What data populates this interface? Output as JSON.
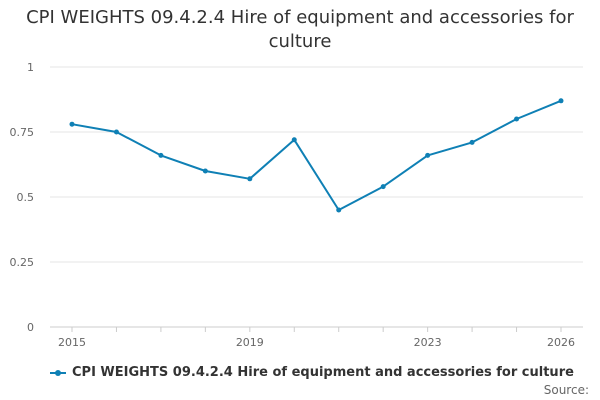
{
  "chart_data": {
    "type": "line",
    "title": "CPI WEIGHTS 09.4.2.4 Hire of equipment and accessories for culture",
    "x": [
      2015,
      2016,
      2017,
      2018,
      2019,
      2020,
      2021,
      2022,
      2023,
      2024,
      2025,
      2026
    ],
    "series": [
      {
        "name": "CPI WEIGHTS 09.4.2.4 Hire of equipment and accessories for culture",
        "values": [
          0.78,
          0.75,
          0.66,
          0.6,
          0.57,
          0.72,
          0.45,
          0.54,
          0.66,
          0.71,
          0.8,
          0.87
        ],
        "color": "#0f80b5"
      }
    ],
    "x_ticks": [
      2015,
      2019,
      2023,
      2026
    ],
    "y_ticks": [
      0,
      0.25,
      0.5,
      0.75,
      1
    ],
    "y_tick_labels": [
      "0",
      "0.25",
      "0.5",
      "0.75",
      "1"
    ],
    "ylim": [
      0,
      1
    ],
    "xlim": [
      2015,
      2026
    ],
    "grid": true,
    "legend": "bottom",
    "source_label": "Source:"
  }
}
